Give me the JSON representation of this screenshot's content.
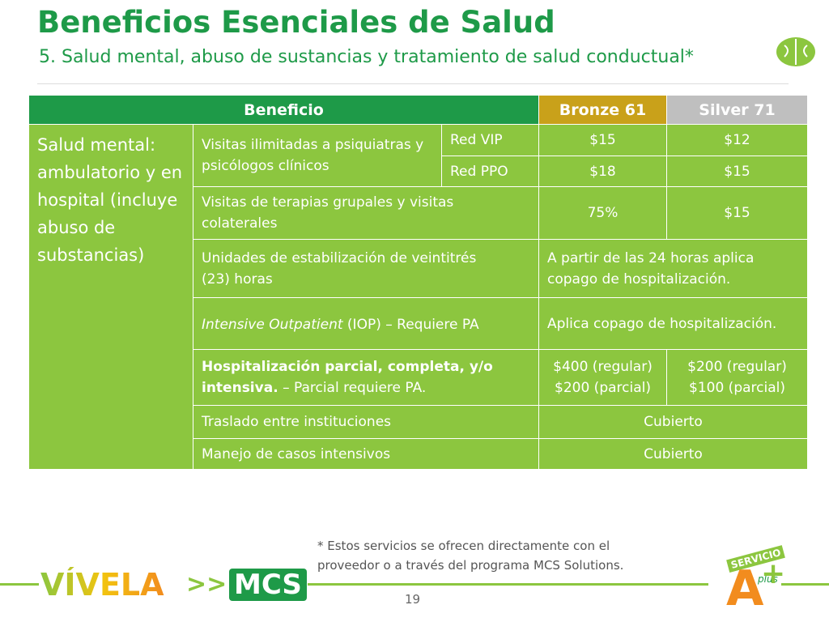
{
  "header": {
    "title": "Beneficios Esenciales de Salud",
    "subtitle": "5. Salud mental, abuso de sustancias y tratamiento de salud conductual*"
  },
  "table": {
    "columns": [
      "Beneficio",
      "Bronze 61",
      "Silver 71"
    ],
    "category": "Salud mental: ambulatorio y en hospital (incluye abuso de substancias)",
    "rows": [
      {
        "benefit": "Visitas ilimitadas a psiquiatras y psicólogos clínicos",
        "networks": [
          {
            "name": "Red VIP",
            "bronze": "$15",
            "silver": "$12"
          },
          {
            "name": "Red PPO",
            "bronze": "$18",
            "silver": "$15"
          }
        ]
      },
      {
        "benefit": "Visitas de terapias grupales y visitas colaterales",
        "bronze": "75%",
        "silver": "$15"
      },
      {
        "benefit": "Unidades de estabilización de veintitrés (23) horas",
        "combined": "A partir de las 24 horas aplica copago de hospitalización."
      },
      {
        "benefit_italic": "Intensive Outpatient",
        "benefit_rest": "(IOP) – Requiere PA",
        "combined": "Aplica copago de hospitalización."
      },
      {
        "benefit_bold": "Hospitalización parcial, completa, y/o intensiva.",
        "benefit_rest": "– Parcial requiere PA.",
        "bronze": [
          "$400 (regular)",
          "$200 (parcial)"
        ],
        "silver": [
          "$200 (regular)",
          "$100 (parcial)"
        ]
      },
      {
        "benefit": "Traslado entre instituciones",
        "combined": "Cubierto"
      },
      {
        "benefit": "Manejo de casos intensivos",
        "combined": "Cubierto"
      }
    ]
  },
  "footer": {
    "footnote": "* Estos servicios se ofrecen directamente con el proveedor o a través del programa MCS Solutions.",
    "page_number": "19",
    "logo_vivela": "VÍVELA",
    "logo_arrows": ">>",
    "logo_mcs": "MCS",
    "badge_top": "SERVICIO",
    "badge_letter": "A",
    "badge_plus": "plus"
  }
}
